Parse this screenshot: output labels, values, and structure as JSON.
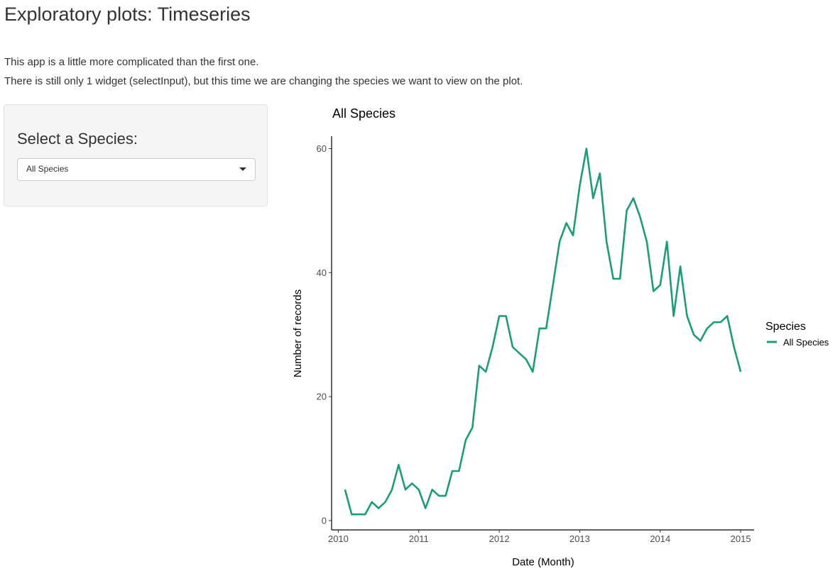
{
  "page": {
    "title": "Exploratory plots: Timeseries",
    "intro_line1": "This app is a little more complicated than the first one.",
    "intro_line2": "There is still only 1 widget (selectInput), but this time we are changing the species we want to view on the plot."
  },
  "sidebar": {
    "label": "Select a Species:",
    "select_value": "All Species"
  },
  "colors": {
    "series": "#1b9e77",
    "axis": "#000000",
    "tick_text": "#4d4d4d"
  },
  "chart_data": {
    "type": "line",
    "title": "All Species",
    "xlabel": "Date (Month)",
    "ylabel": "Number of records",
    "legend_title": "Species",
    "legend_placement": "right",
    "grid": false,
    "x_ticks": [
      "2010",
      "2011",
      "2012",
      "2013",
      "2014",
      "2015"
    ],
    "y_ticks": [
      "0",
      "20",
      "40",
      "60"
    ],
    "xlim": [
      "2009-12",
      "2015-03"
    ],
    "ylim": [
      -1.5,
      62
    ],
    "x": [
      "2010-02",
      "2010-03",
      "2010-04",
      "2010-05",
      "2010-06",
      "2010-07",
      "2010-08",
      "2010-09",
      "2010-10",
      "2010-11",
      "2010-12",
      "2011-01",
      "2011-02",
      "2011-03",
      "2011-04",
      "2011-05",
      "2011-06",
      "2011-07",
      "2011-08",
      "2011-09",
      "2011-10",
      "2011-11",
      "2011-12",
      "2012-01",
      "2012-02",
      "2012-03",
      "2012-04",
      "2012-05",
      "2012-06",
      "2012-07",
      "2012-08",
      "2012-09",
      "2012-10",
      "2012-11",
      "2012-12",
      "2013-01",
      "2013-02",
      "2013-03",
      "2013-04",
      "2013-05",
      "2013-06",
      "2013-07",
      "2013-08",
      "2013-09",
      "2013-10",
      "2013-11",
      "2013-12",
      "2014-01",
      "2014-02",
      "2014-03",
      "2014-04",
      "2014-05",
      "2014-06",
      "2014-07",
      "2014-08",
      "2014-09",
      "2014-10",
      "2014-11",
      "2014-12",
      "2015-01"
    ],
    "series": [
      {
        "name": "All Species",
        "values": [
          5,
          1,
          1,
          1,
          3,
          2,
          3,
          5,
          9,
          5,
          6,
          5,
          2,
          5,
          4,
          4,
          8,
          8,
          13,
          15,
          25,
          24,
          28,
          33,
          33,
          28,
          27,
          26,
          24,
          31,
          31,
          38,
          45,
          48,
          46,
          54,
          60,
          52,
          56,
          45,
          39,
          39,
          50,
          52,
          49,
          45,
          37,
          38,
          45,
          33,
          41,
          33,
          30,
          29,
          31,
          32,
          32,
          33,
          28,
          24
        ]
      }
    ]
  }
}
